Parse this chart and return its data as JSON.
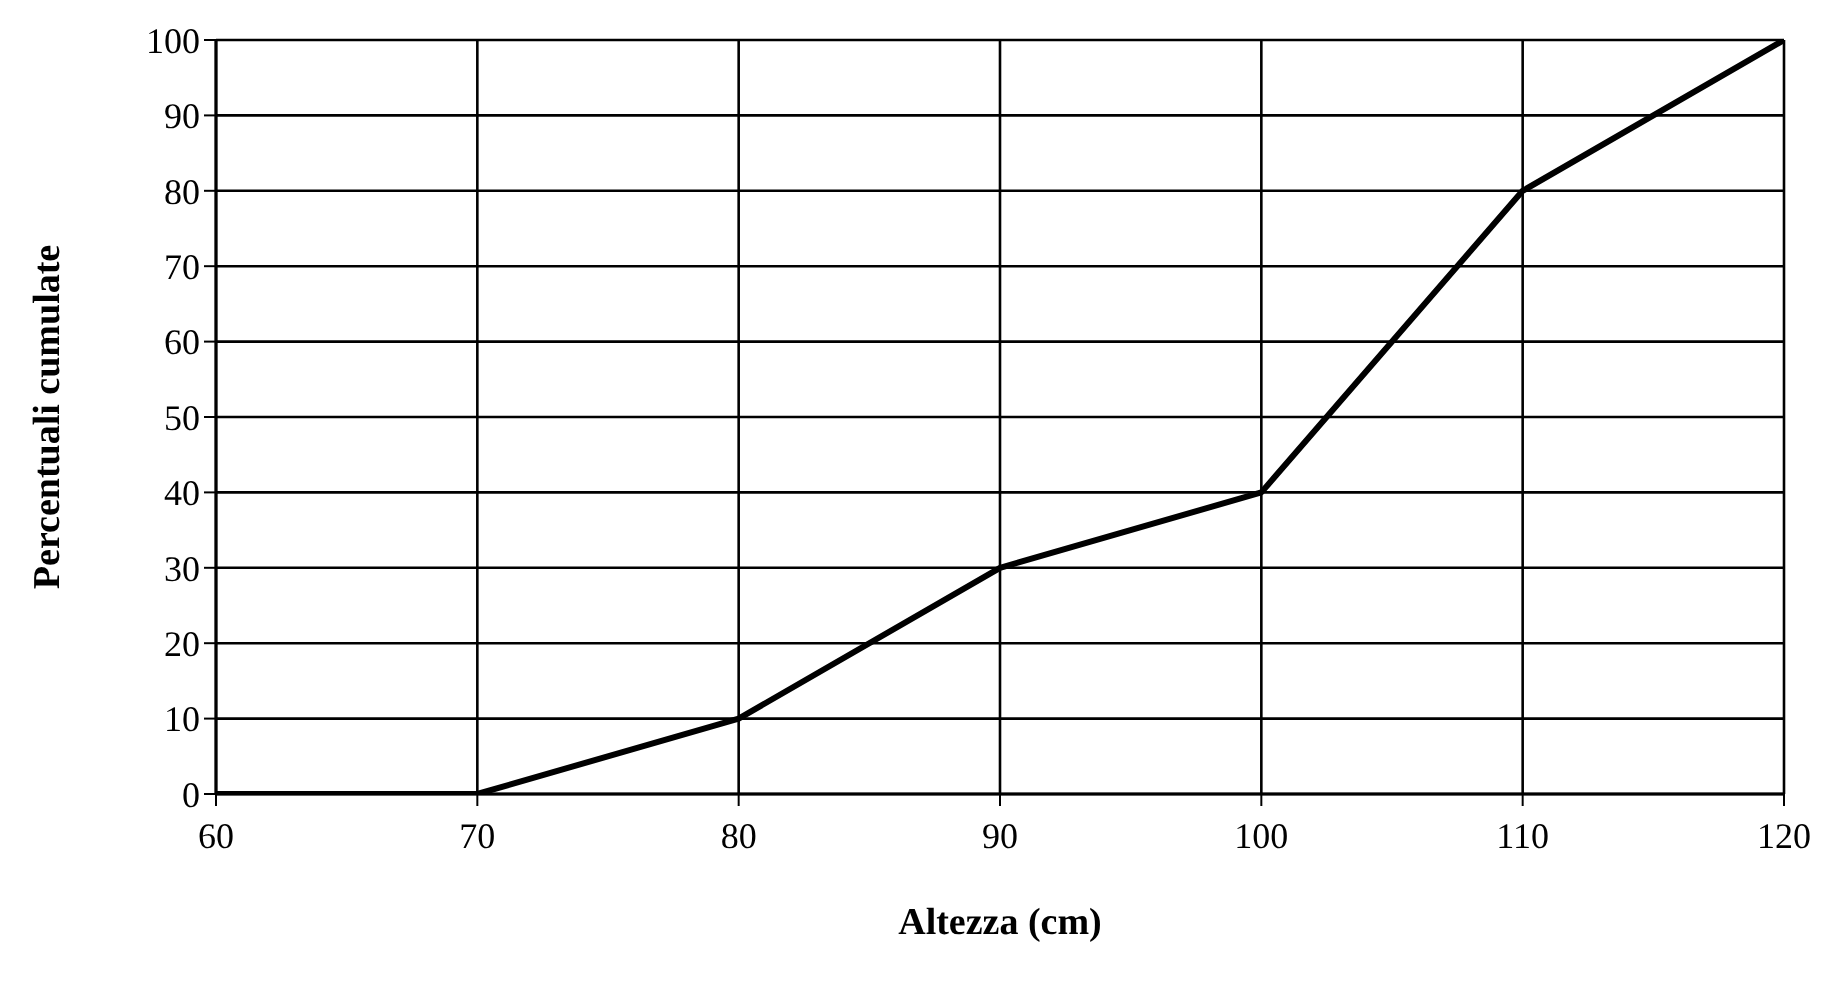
{
  "chart_data": {
    "type": "line",
    "xlabel": "Altezza (cm)",
    "ylabel": "Percentuali cumulate",
    "x": [
      60,
      70,
      80,
      90,
      100,
      110,
      120
    ],
    "series": [
      {
        "color": "#000000",
        "values": [
          0,
          0,
          10,
          30,
          40,
          80,
          100
        ]
      }
    ],
    "xlim": [
      60,
      120
    ],
    "xticks": [
      60,
      70,
      80,
      90,
      100,
      110,
      120
    ],
    "ylim": [
      0,
      100
    ],
    "yticks": [
      0,
      10,
      20,
      30,
      40,
      50,
      60,
      70,
      80,
      90,
      100
    ],
    "grid": true,
    "legend": false,
    "marker": "none",
    "line_style": "solid"
  }
}
